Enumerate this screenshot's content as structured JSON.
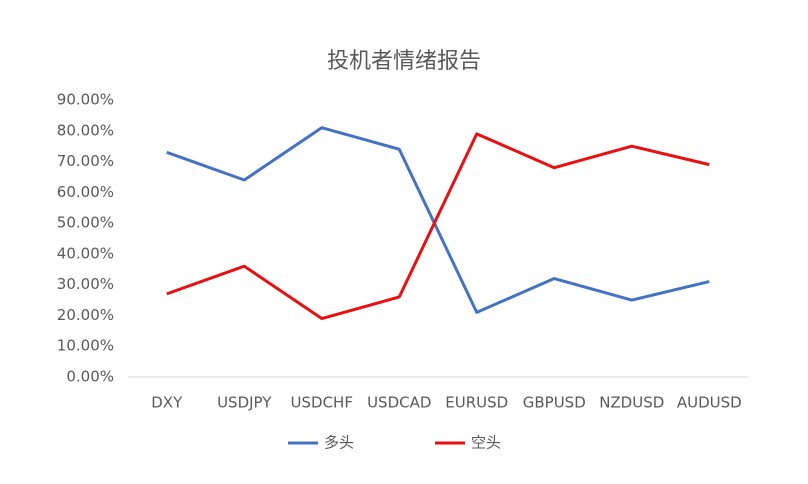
{
  "chart_data": {
    "type": "line",
    "title": "投机者情绪报告",
    "categories": [
      "DXY",
      "USDJPY",
      "USDCHF",
      "USDCAD",
      "EURUSD",
      "GBPUSD",
      "NZDUSD",
      "AUDUSD"
    ],
    "series": [
      {
        "name": "多头",
        "color": "#4472c4",
        "values": [
          73,
          64,
          81,
          74,
          21,
          32,
          25,
          31
        ]
      },
      {
        "name": "空头",
        "color": "#e81010",
        "values": [
          27,
          36,
          19,
          26,
          79,
          68,
          75,
          69
        ]
      }
    ],
    "ylim": [
      0,
      90
    ],
    "yticks": [
      {
        "value": 0,
        "label": "0.00%"
      },
      {
        "value": 10,
        "label": "10.00%"
      },
      {
        "value": 20,
        "label": "20.00%"
      },
      {
        "value": 30,
        "label": "30.00%"
      },
      {
        "value": 40,
        "label": "40.00%"
      },
      {
        "value": 50,
        "label": "50.00%"
      },
      {
        "value": 60,
        "label": "60.00%"
      },
      {
        "value": 70,
        "label": "70.00%"
      },
      {
        "value": 80,
        "label": "80.00%"
      },
      {
        "value": 90,
        "label": "90.00%"
      }
    ],
    "grid": false,
    "legend": "bottom"
  }
}
